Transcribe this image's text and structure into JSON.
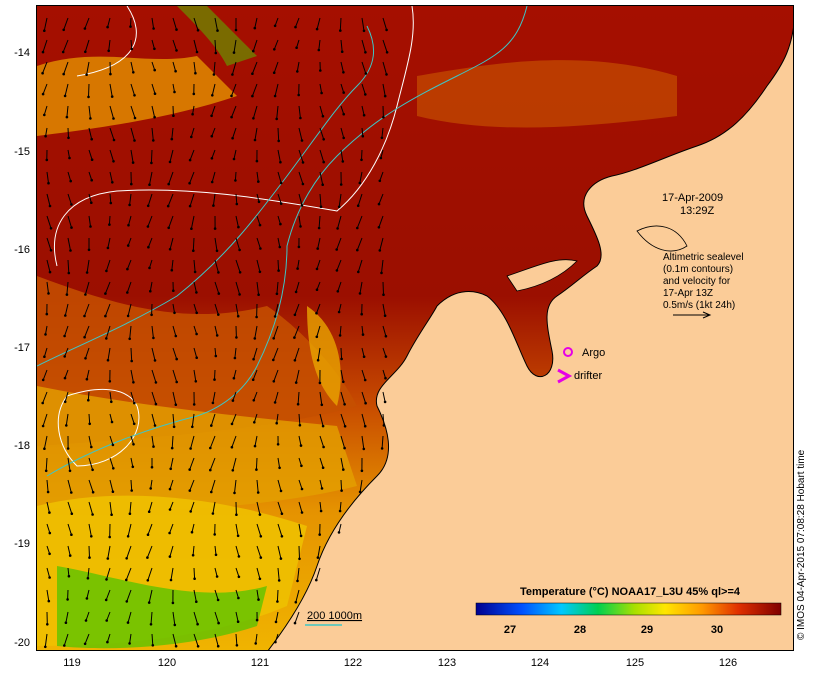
{
  "map": {
    "date_label": "17-Apr-2009",
    "time_label": "13:29Z",
    "altimetry_note": [
      "Altimetric sealevel",
      "(0.1m contours)",
      "and velocity for",
      "17-Apr 13Z",
      "0.5m/s (1kt 24h)"
    ],
    "legend_argo": "Argo",
    "legend_drifter": "drifter",
    "depth_contours_label": "200  1000m",
    "credit": "© IMOS 04-Apr-2015 07:08:28 Hobart time",
    "colorbar_title": "Temperature (°C) NOAA17_L3U 45% ql>=4",
    "colorbar_ticks": [
      "27",
      "28",
      "29",
      "30"
    ],
    "lat_ticks": [
      "-14",
      "-15",
      "-16",
      "-17",
      "-18",
      "-19",
      "-20"
    ],
    "lon_ticks": [
      "119",
      "120",
      "121",
      "122",
      "123",
      "124",
      "125",
      "126"
    ],
    "colors": {
      "land": "#fbcc98",
      "sst_warm": "#9b0f00",
      "sst_mid": "#d85a00",
      "sst_cool": "#f2b400",
      "sst_cold": "#4ec800",
      "argo": "#e600e6",
      "contour_white": "#ffffff",
      "contour_cyan": "#3ec6c6"
    }
  }
}
